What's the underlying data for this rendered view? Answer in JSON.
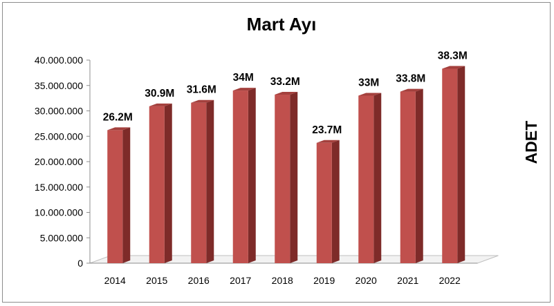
{
  "chart_data": {
    "type": "bar",
    "title": "Mart Ayı",
    "ylabel": "ADET",
    "xlabel": "",
    "categories": [
      "2014",
      "2015",
      "2016",
      "2017",
      "2018",
      "2019",
      "2020",
      "2021",
      "2022"
    ],
    "values": [
      26200000,
      30900000,
      31600000,
      34000000,
      33200000,
      23700000,
      33000000,
      33800000,
      38300000
    ],
    "data_labels": [
      "26.2M",
      "30.9M",
      "31.6M",
      "34M",
      "33.2M",
      "23.7M",
      "33M",
      "33.8M",
      "38.3M"
    ],
    "yticks": [
      "0",
      "5.000.000",
      "10.000.000",
      "15.000.000",
      "20.000.000",
      "25.000.000",
      "30.000.000",
      "35.000.000",
      "40.000.000"
    ],
    "ylim": [
      0,
      40000000
    ],
    "grid": false,
    "legend": "none",
    "colors": {
      "bar_front": "#c0504d",
      "bar_side": "#7e2b29",
      "bar_top": "#a4403d",
      "floor": "#f2f2f2",
      "axis": "#8c8c8c"
    }
  }
}
